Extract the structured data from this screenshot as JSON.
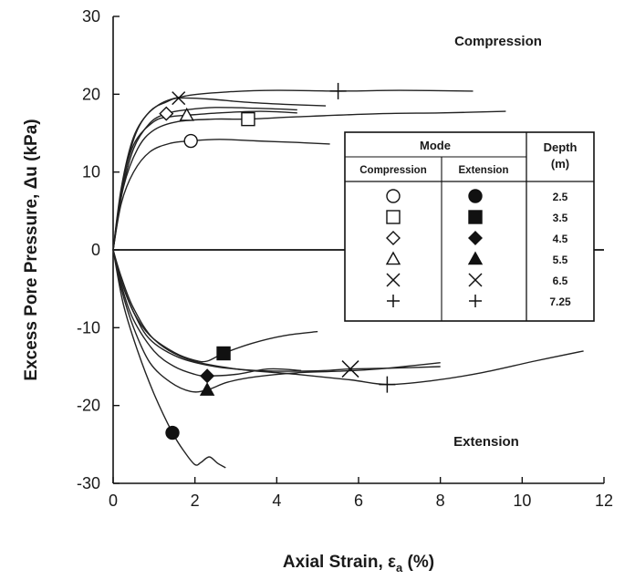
{
  "chart_data": {
    "type": "line",
    "xlabel_main": "Axial Strain, ε",
    "xlabel_sub": "a",
    "xlabel_tail": " (%)",
    "ylabel": "Excess Pore Pressure, Δu (kPa)",
    "xlim": [
      0,
      12
    ],
    "ylim": [
      -30,
      30
    ],
    "x_ticks": [
      0,
      2,
      4,
      6,
      8,
      10,
      12
    ],
    "y_ticks": [
      -30,
      -20,
      -10,
      0,
      10,
      20,
      30
    ],
    "annotations": {
      "compression": "Compression",
      "extension": "Extension"
    },
    "legend": {
      "mode_header": "Mode",
      "compression_header": "Compression",
      "extension_header": "Extension",
      "depth_header_line1": "Depth",
      "depth_header_line2": "(m)",
      "rows": [
        {
          "depth": "2.5",
          "compression_marker": "circle-open",
          "extension_marker": "circle-filled"
        },
        {
          "depth": "3.5",
          "compression_marker": "square-open",
          "extension_marker": "square-filled"
        },
        {
          "depth": "4.5",
          "compression_marker": "diamond-open",
          "extension_marker": "diamond-filled"
        },
        {
          "depth": "5.5",
          "compression_marker": "triangle-open",
          "extension_marker": "triangle-filled"
        },
        {
          "depth": "6.5",
          "compression_marker": "x",
          "extension_marker": "x"
        },
        {
          "depth": "7.25",
          "compression_marker": "plus",
          "extension_marker": "plus"
        }
      ]
    },
    "series": [
      {
        "mode": "compression",
        "depth": 2.5,
        "marker": "circle-open",
        "marker_at": [
          1.9,
          14
        ],
        "points": [
          [
            0,
            0
          ],
          [
            0.2,
            6
          ],
          [
            0.5,
            10
          ],
          [
            0.9,
            12.6
          ],
          [
            1.4,
            13.7
          ],
          [
            1.9,
            14
          ],
          [
            2.6,
            14.2
          ],
          [
            3.5,
            14
          ],
          [
            4.5,
            13.8
          ],
          [
            5.3,
            13.6
          ]
        ]
      },
      {
        "mode": "compression",
        "depth": 3.5,
        "marker": "square-open",
        "marker_at": [
          3.3,
          16.8
        ],
        "points": [
          [
            0,
            0
          ],
          [
            0.25,
            8
          ],
          [
            0.6,
            13
          ],
          [
            1.0,
            15.4
          ],
          [
            1.6,
            16.5
          ],
          [
            2.5,
            16.8
          ],
          [
            3.3,
            16.8
          ],
          [
            4.5,
            17.1
          ],
          [
            6.5,
            17.5
          ],
          [
            8,
            17.6
          ],
          [
            9.6,
            17.8
          ]
        ]
      },
      {
        "mode": "compression",
        "depth": 4.5,
        "marker": "diamond-open",
        "marker_at": [
          1.3,
          17.5
        ],
        "points": [
          [
            0,
            0
          ],
          [
            0.2,
            7
          ],
          [
            0.5,
            13
          ],
          [
            0.9,
            16.3
          ],
          [
            1.3,
            17.5
          ],
          [
            1.8,
            18
          ],
          [
            2.5,
            18.3
          ],
          [
            3.5,
            18.2
          ],
          [
            4.5,
            18
          ]
        ]
      },
      {
        "mode": "compression",
        "depth": 5.5,
        "marker": "triangle-open",
        "marker_at": [
          1.8,
          17.3
        ],
        "points": [
          [
            0,
            0
          ],
          [
            0.2,
            7.5
          ],
          [
            0.5,
            13.5
          ],
          [
            1.0,
            16.5
          ],
          [
            1.4,
            17.1
          ],
          [
            1.8,
            17.3
          ],
          [
            2.6,
            17.6
          ],
          [
            3.6,
            17.8
          ],
          [
            4.5,
            17.6
          ]
        ]
      },
      {
        "mode": "compression",
        "depth": 6.5,
        "marker": "x",
        "marker_at": [
          1.6,
          19.5
        ],
        "points": [
          [
            0,
            0
          ],
          [
            0.2,
            8
          ],
          [
            0.5,
            14.5
          ],
          [
            0.9,
            17.8
          ],
          [
            1.3,
            19
          ],
          [
            1.6,
            19.5
          ],
          [
            2.3,
            19.4
          ],
          [
            3.2,
            19
          ],
          [
            4.2,
            18.7
          ],
          [
            5.2,
            18.5
          ]
        ]
      },
      {
        "mode": "compression",
        "depth": 7.25,
        "marker": "plus",
        "marker_at": [
          5.5,
          20.4
        ],
        "points": [
          [
            0,
            0
          ],
          [
            0.25,
            9
          ],
          [
            0.6,
            15.5
          ],
          [
            1.1,
            18.6
          ],
          [
            1.8,
            19.8
          ],
          [
            2.8,
            20.3
          ],
          [
            4,
            20.5
          ],
          [
            5.5,
            20.4
          ],
          [
            7,
            20.5
          ],
          [
            8.8,
            20.4
          ]
        ]
      },
      {
        "mode": "extension",
        "depth": 2.5,
        "marker": "circle-filled",
        "marker_at": [
          1.45,
          -23.5
        ],
        "points": [
          [
            0,
            0
          ],
          [
            0.25,
            -7
          ],
          [
            0.6,
            -13
          ],
          [
            1.0,
            -18.5
          ],
          [
            1.45,
            -23.5
          ],
          [
            1.75,
            -26
          ],
          [
            2.0,
            -27.6
          ],
          [
            2.15,
            -27.3
          ],
          [
            2.35,
            -26.6
          ],
          [
            2.55,
            -27.4
          ],
          [
            2.75,
            -28
          ]
        ]
      },
      {
        "mode": "extension",
        "depth": 3.5,
        "marker": "square-filled",
        "marker_at": [
          2.7,
          -13.3
        ],
        "points": [
          [
            0,
            0
          ],
          [
            0.2,
            -4
          ],
          [
            0.5,
            -8
          ],
          [
            0.9,
            -11
          ],
          [
            1.5,
            -13.2
          ],
          [
            2.0,
            -14.2
          ],
          [
            2.3,
            -14.3
          ],
          [
            2.7,
            -13.3
          ],
          [
            3.4,
            -12
          ],
          [
            4.2,
            -11
          ],
          [
            5,
            -10.5
          ]
        ]
      },
      {
        "mode": "extension",
        "depth": 4.5,
        "marker": "diamond-filled",
        "marker_at": [
          2.3,
          -16.2
        ],
        "points": [
          [
            0,
            0
          ],
          [
            0.2,
            -4.5
          ],
          [
            0.5,
            -9
          ],
          [
            1.0,
            -13
          ],
          [
            1.5,
            -15
          ],
          [
            2.0,
            -16
          ],
          [
            2.3,
            -16.2
          ],
          [
            3.0,
            -16
          ],
          [
            3.8,
            -15.3
          ],
          [
            4.6,
            -15.5
          ]
        ]
      },
      {
        "mode": "extension",
        "depth": 5.5,
        "marker": "triangle-filled",
        "marker_at": [
          2.3,
          -18
        ],
        "points": [
          [
            0,
            0
          ],
          [
            0.2,
            -5
          ],
          [
            0.5,
            -10
          ],
          [
            0.9,
            -14.5
          ],
          [
            1.4,
            -17
          ],
          [
            1.9,
            -18.2
          ],
          [
            2.3,
            -18
          ],
          [
            2.8,
            -17
          ],
          [
            3.5,
            -16.3
          ],
          [
            4.5,
            -15.8
          ],
          [
            5.5,
            -15.6
          ],
          [
            6.5,
            -15.3
          ],
          [
            8,
            -14.5
          ]
        ]
      },
      {
        "mode": "extension",
        "depth": 6.5,
        "marker": "x",
        "marker_at": [
          5.8,
          -15.3
        ],
        "points": [
          [
            0,
            0
          ],
          [
            0.2,
            -4
          ],
          [
            0.5,
            -8
          ],
          [
            0.9,
            -11.5
          ],
          [
            1.6,
            -13.8
          ],
          [
            2.5,
            -15
          ],
          [
            3.5,
            -15.5
          ],
          [
            4.5,
            -15.6
          ],
          [
            5.2,
            -15.5
          ],
          [
            5.8,
            -15.3
          ],
          [
            6.8,
            -15.2
          ],
          [
            8,
            -15
          ]
        ]
      },
      {
        "mode": "extension",
        "depth": 7.25,
        "marker": "plus",
        "marker_at": [
          6.7,
          -17.3
        ],
        "points": [
          [
            0,
            0
          ],
          [
            0.2,
            -3.5
          ],
          [
            0.5,
            -7.5
          ],
          [
            1.0,
            -11.5
          ],
          [
            1.8,
            -14
          ],
          [
            3,
            -15.3
          ],
          [
            4.5,
            -16
          ],
          [
            5.8,
            -16.7
          ],
          [
            6.7,
            -17.3
          ],
          [
            7.8,
            -16.8
          ],
          [
            9,
            -15.8
          ],
          [
            10.3,
            -14.3
          ],
          [
            11.5,
            -13
          ]
        ]
      }
    ]
  }
}
